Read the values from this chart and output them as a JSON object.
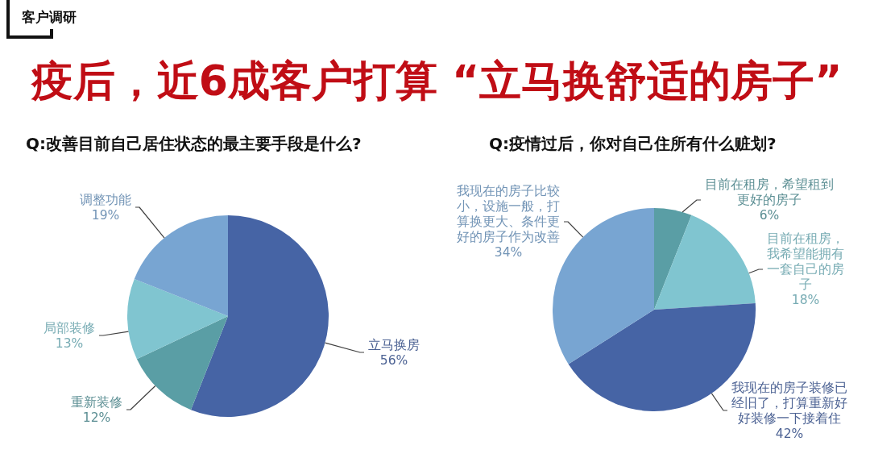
{
  "chart_data": [
    {
      "type": "other",
      "title": "疫后，近6成客户打算 “立马换舒适的房子”",
      "annotations": [
        "客户调研"
      ]
    },
    {
      "type": "pie",
      "title": "Q:改善目前自己居住状态的最主要手段是什么?",
      "categories": [
        "立马换房",
        "重新装修",
        "局部装修",
        "调整功能"
      ],
      "values": [
        56,
        12,
        13,
        19
      ],
      "value_labels": [
        "56%",
        "12%",
        "13%",
        "19%"
      ],
      "colors": [
        "#4664a5",
        "#5a9ea5",
        "#80c5d0",
        "#78a5d2"
      ]
    },
    {
      "type": "pie",
      "title": "Q:疫情过后，你对自己住所有什么赃划?",
      "categories": [
        "目前在租房，希望租到更好的房子",
        "目前在租房，我希望能拥有一套自己的房子",
        "我现在的房子装修已经旧了，打算重新好好装修一下接着住",
        "我现在的房子比较小，设施一般，打算换更大、条件更好的房子作为改善"
      ],
      "values": [
        6,
        18,
        42,
        34
      ],
      "value_labels": [
        "6%",
        "18%",
        "42%",
        "34%"
      ],
      "colors": [
        "#5a9ea5",
        "#80c5d0",
        "#4664a5",
        "#78a5d2"
      ]
    }
  ]
}
